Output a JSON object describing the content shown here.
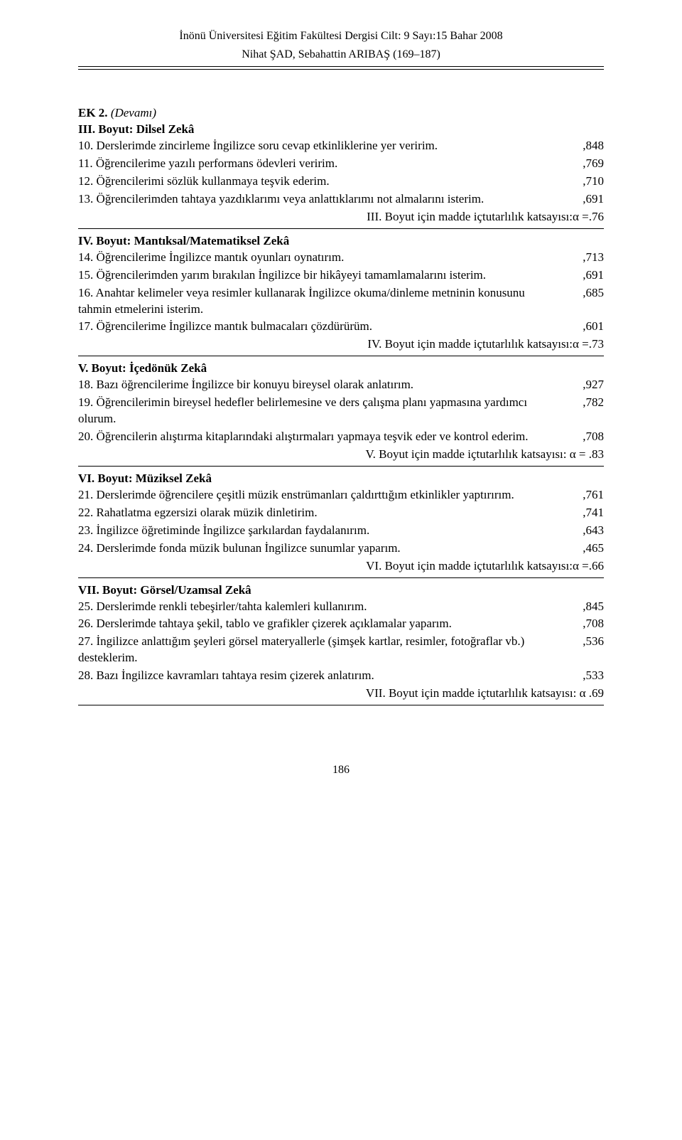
{
  "header": {
    "journal": "İnönü Üniversitesi Eğitim Fakültesi Dergisi Cilt: 9 Sayı:15 Bahar 2008",
    "authors": "Nihat ŞAD, Sebahattin ARIBAŞ (169–187)"
  },
  "appendix": {
    "label": "EK 2.",
    "cont": "(Devamı)"
  },
  "sections": [
    {
      "heading": "III. Boyut: Dilsel Zekâ",
      "items": [
        {
          "text": "10. Derslerimde zincirleme İngilizce soru cevap etkinliklerine yer veririm.",
          "value": ",848"
        },
        {
          "text": "11. Öğrencilerime yazılı performans ödevleri veririm.",
          "value": ",769"
        },
        {
          "text": "12. Öğrencilerimi sözlük kullanmaya teşvik ederim.",
          "value": ",710"
        },
        {
          "text": "13. Öğrencilerimden tahtaya yazdıklarımı veya anlattıklarımı not almalarını isterim.",
          "value": ",691"
        }
      ],
      "alpha": "III. Boyut için madde içtutarlılık katsayısı:α =.76"
    },
    {
      "heading": "IV. Boyut: Mantıksal/Matematiksel Zekâ",
      "items": [
        {
          "text": "14. Öğrencilerime İngilizce mantık oyunları oynatırım.",
          "value": ",713"
        },
        {
          "text": "15. Öğrencilerimden yarım bırakılan İngilizce bir hikâyeyi tamamlamalarını isterim.",
          "value": ",691"
        },
        {
          "text": "16. Anahtar kelimeler veya resimler kullanarak İngilizce okuma/dinleme metninin konusunu tahmin etmelerini isterim.",
          "value": ",685"
        },
        {
          "text": "17. Öğrencilerime İngilizce mantık bulmacaları çözdürürüm.",
          "value": ",601"
        }
      ],
      "alpha": "IV. Boyut için madde içtutarlılık katsayısı:α =.73"
    },
    {
      "heading": "V. Boyut: İçedönük Zekâ",
      "items": [
        {
          "text": "18. Bazı öğrencilerime İngilizce bir konuyu bireysel olarak anlatırım.",
          "value": ",927"
        },
        {
          "text": "19. Öğrencilerimin bireysel hedefler belirlemesine ve ders çalışma planı yapmasına yardımcı olurum.",
          "value": ",782"
        },
        {
          "text": "20. Öğrencilerin alıştırma kitaplarındaki alıştırmaları yapmaya teşvik eder ve kontrol ederim.",
          "value": ",708"
        }
      ],
      "alpha": "V. Boyut için madde içtutarlılık katsayısı: α = .83"
    },
    {
      "heading": "VI. Boyut: Müziksel Zekâ",
      "items": [
        {
          "text": "21. Derslerimde öğrencilere çeşitli müzik enstrümanları çaldırttığım etkinlikler yaptırırım.",
          "value": ",761"
        },
        {
          "text": "22. Rahatlatma egzersizi olarak müzik dinletirim.",
          "value": ",741"
        },
        {
          "text": "23. İngilizce öğretiminde İngilizce şarkılardan faydalanırım.",
          "value": ",643"
        },
        {
          "text": "24. Derslerimde fonda müzik bulunan İngilizce sunumlar yaparım.",
          "value": ",465"
        }
      ],
      "alpha": "VI. Boyut için madde içtutarlılık katsayısı:α =.66"
    },
    {
      "heading": "VII. Boyut: Görsel/Uzamsal Zekâ",
      "items": [
        {
          "text": "25. Derslerimde renkli tebeşirler/tahta kalemleri kullanırım.",
          "value": ",845"
        },
        {
          "text": "26. Derslerimde tahtaya şekil, tablo ve grafikler çizerek açıklamalar yaparım.",
          "value": ",708"
        },
        {
          "text": "27. İngilizce anlattığım şeyleri görsel materyallerle (şimşek kartlar, resimler, fotoğraflar vb.) desteklerim.",
          "value": ",536"
        },
        {
          "text": "28. Bazı İngilizce kavramları tahtaya resim çizerek anlatırım.",
          "value": ",533"
        }
      ],
      "alpha": "VII. Boyut için madde içtutarlılık katsayısı: α .69"
    }
  ],
  "page_number": "186"
}
